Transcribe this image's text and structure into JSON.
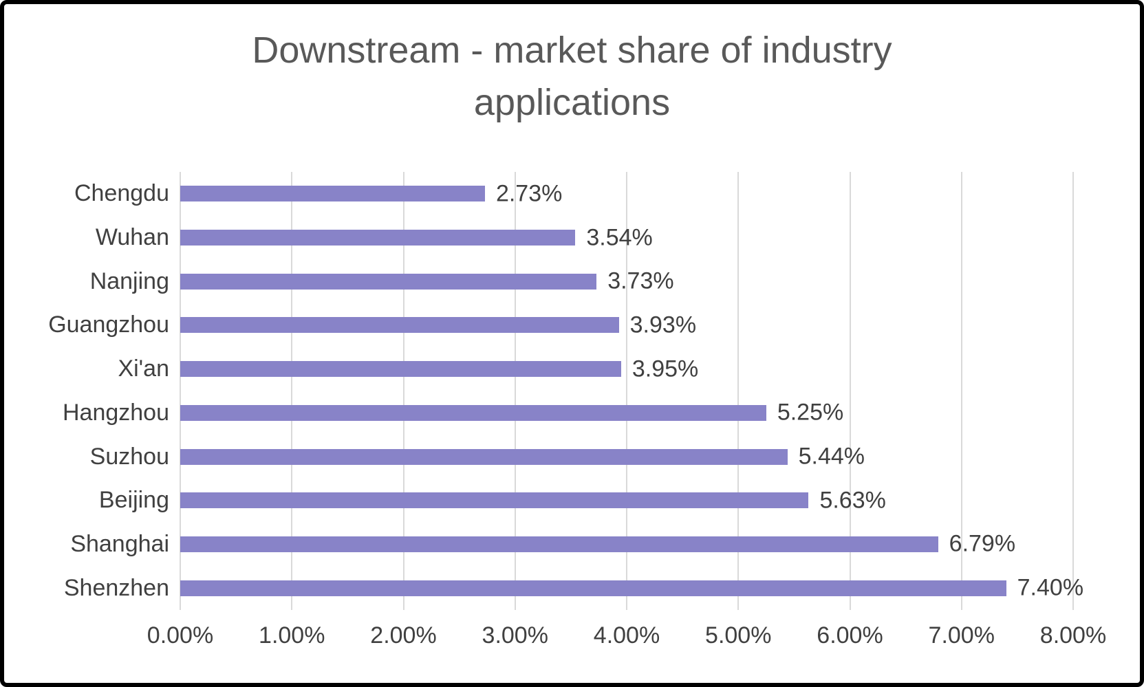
{
  "chart_data": {
    "type": "bar",
    "orientation": "horizontal",
    "title": "Downstream - market share of industry applications",
    "categories": [
      "Chengdu",
      "Wuhan",
      "Nanjing",
      "Guangzhou",
      "Xi'an",
      "Hangzhou",
      "Suzhou",
      "Beijing",
      "Shanghai",
      "Shenzhen"
    ],
    "values": [
      2.73,
      3.54,
      3.73,
      3.93,
      3.95,
      5.25,
      5.44,
      5.63,
      6.79,
      7.4
    ],
    "data_labels": [
      "2.73%",
      "3.54%",
      "3.73%",
      "3.93%",
      "3.95%",
      "5.25%",
      "5.44%",
      "5.63%",
      "6.79%",
      "7.40%"
    ],
    "x_ticks": [
      "0.00%",
      "1.00%",
      "2.00%",
      "3.00%",
      "4.00%",
      "5.00%",
      "6.00%",
      "7.00%",
      "8.00%"
    ],
    "xlim": [
      0,
      8
    ],
    "xlabel": "",
    "ylabel": "",
    "legend": "none",
    "grid": "vertical",
    "colors": {
      "bar": "#8883C8",
      "title": "#595959",
      "labels": "#404040",
      "gridline": "#D9D9D9",
      "background": "#FFFFFF",
      "border": "#000000"
    }
  }
}
